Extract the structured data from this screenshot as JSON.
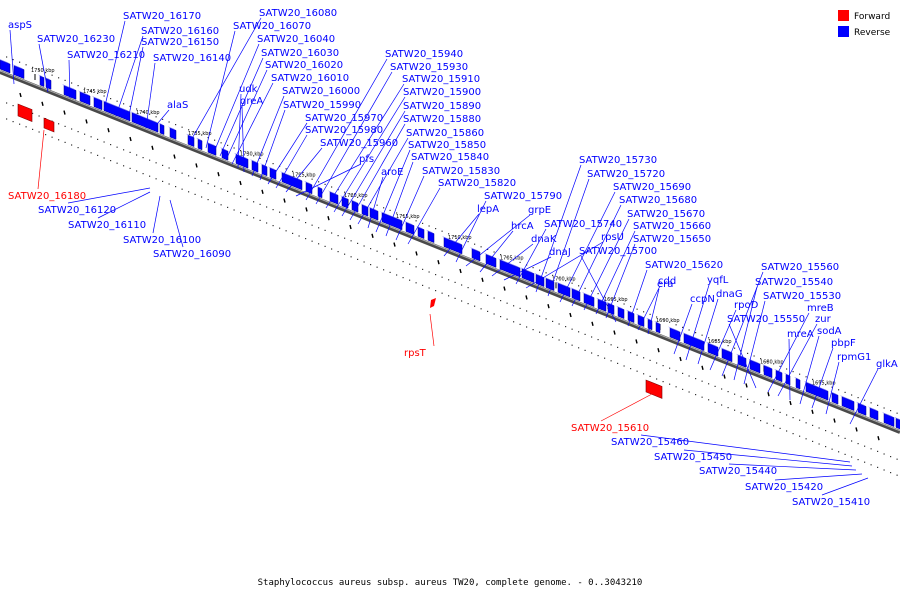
{
  "caption": "Staphylococcus aureus subsp. aureus TW20, complete genome. - 0..3043210",
  "colors": {
    "forward": "#ff0000",
    "reverse": "#0000ff",
    "backbone": "#555555"
  },
  "legend": [
    {
      "label": "Forward",
      "color": "#ff0000"
    },
    {
      "label": "Reverse",
      "color": "#0000ff"
    }
  ],
  "ticks": [
    "1750 kbp",
    "1745 kbp",
    "1740 kbp",
    "1735 kbp",
    "1730 kbp",
    "1725 kbp",
    "1720 kbp",
    "1715 kbp",
    "1710 kbp",
    "1705 kbp",
    "1700 kbp",
    "1695 kbp",
    "1690 kbp",
    "1685 kbp",
    "1680 kbp",
    "1675 kbp"
  ],
  "reverse_labels": [
    "aspS",
    "SATW20_16230",
    "SATW20_16170",
    "SATW20_16210",
    "SATW20_16160",
    "SATW20_16150",
    "SATW20_16140",
    "SATW20_16080",
    "SATW20_16070",
    "SATW20_16040",
    "SATW20_16030",
    "SATW20_16020",
    "SATW20_16010",
    "udk",
    "greA",
    "SATW20_16000",
    "SATW20_15990",
    "alaS",
    "SATW20_15970",
    "SATW20_15980",
    "SATW20_15960",
    "pfs",
    "SATW20_15940",
    "SATW20_15930",
    "SATW20_15910",
    "SATW20_15900",
    "SATW20_15890",
    "SATW20_15880",
    "SATW20_15860",
    "aroE",
    "SATW20_15850",
    "SATW20_15840",
    "SATW20_15830",
    "SATW20_15820",
    "lepA",
    "SATW20_15790",
    "grpE",
    "hrcA",
    "dnaK",
    "dnaJ",
    "SATW20_15740",
    "rpsU",
    "SATW20_15730",
    "SATW20_15720",
    "SATW20_15690",
    "SATW20_15680",
    "SATW20_15670",
    "SATW20_15660",
    "SATW20_15650",
    "SATW20_15700",
    "SATW20_15620",
    "cdd",
    "era",
    "ccpN",
    "yqfL",
    "dnaG",
    "rpoD",
    "SATW20_15560",
    "SATW20_15540",
    "SATW20_15530",
    "SATW20_15550",
    "mreB",
    "zur",
    "mreA",
    "sodA",
    "pbpF",
    "rpmG1",
    "glkA"
  ],
  "lower_labels": [
    {
      "text": "SATW20_16180",
      "strand": "forward"
    },
    {
      "text": "SATW20_16120",
      "strand": "reverse"
    },
    {
      "text": "SATW20_16110",
      "strand": "reverse"
    },
    {
      "text": "SATW20_16100",
      "strand": "reverse"
    },
    {
      "text": "SATW20_16090",
      "strand": "reverse"
    },
    {
      "text": "rpsT",
      "strand": "forward"
    },
    {
      "text": "SATW20_15610",
      "strand": "forward"
    },
    {
      "text": "SATW20_15460",
      "strand": "reverse"
    },
    {
      "text": "SATW20_15450",
      "strand": "reverse"
    },
    {
      "text": "SATW20_15440",
      "strand": "reverse"
    },
    {
      "text": "SATW20_15420",
      "strand": "reverse"
    },
    {
      "text": "SATW20_15410",
      "strand": "reverse"
    }
  ]
}
